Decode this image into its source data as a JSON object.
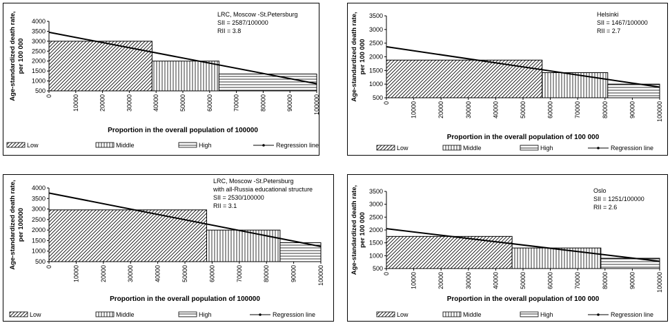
{
  "legend_items": [
    "Low",
    "Middle",
    "High",
    "Regression line"
  ],
  "chart_data": [
    {
      "type": "bar",
      "annotation": [
        "LRC, Moscow -St.Petersburg",
        "SII = 2587/100000",
        "RII = 3.8"
      ],
      "ylabel": [
        "Age-standardized death rate,",
        "per 100 000"
      ],
      "xlabel": "Proportion in the overall population of 100000",
      "ylim": [
        500,
        4000
      ],
      "yticks": [
        500,
        1000,
        1500,
        2000,
        2500,
        3000,
        3500,
        4000
      ],
      "xlim": [
        0,
        100000
      ],
      "xticks": [
        0,
        10000,
        20000,
        30000,
        40000,
        50000,
        60000,
        70000,
        80000,
        90000,
        100000
      ],
      "bars": [
        {
          "name": "Low",
          "x_start": 0,
          "x_end": 38500,
          "value": 3000
        },
        {
          "name": "Middle",
          "x_start": 38500,
          "x_end": 63500,
          "value": 2000
        },
        {
          "name": "High",
          "x_start": 63500,
          "x_end": 100000,
          "value": 1350
        }
      ],
      "regression": {
        "x": [
          0,
          100000
        ],
        "y": [
          3450,
          860
        ]
      },
      "legend": [
        "Low",
        "Middle",
        "High",
        "Regression line"
      ]
    },
    {
      "type": "bar",
      "annotation": [
        "Helsinki",
        "SII = 1467/100000",
        "RII = 2.7"
      ],
      "ylabel": [
        "Age-standardized death rate,",
        "per 100 000"
      ],
      "xlabel": "Proportion in the overall population of 100 000",
      "ylim": [
        500,
        3500
      ],
      "yticks": [
        500,
        1000,
        1500,
        2000,
        2500,
        3000,
        3500
      ],
      "xlim": [
        0,
        100000
      ],
      "xticks": [
        0,
        10000,
        20000,
        30000,
        40000,
        50000,
        60000,
        70000,
        80000,
        90000,
        100000
      ],
      "bars": [
        {
          "name": "Low",
          "x_start": 0,
          "x_end": 57000,
          "value": 1880
        },
        {
          "name": "Middle",
          "x_start": 57000,
          "x_end": 81000,
          "value": 1420
        },
        {
          "name": "High",
          "x_start": 81000,
          "x_end": 100000,
          "value": 1000
        }
      ],
      "regression": {
        "x": [
          0,
          100000
        ],
        "y": [
          2370,
          890
        ]
      },
      "legend": [
        "Low",
        "Middle",
        "High",
        "Regression line"
      ]
    },
    {
      "type": "bar",
      "annotation": [
        "LRC, Moscow -St.Petersburg",
        "with all-Russia educational structure",
        "SII = 2530/100000",
        "RII = 3.1"
      ],
      "ylabel": [
        "Age-standardized death rate,",
        "per 100000"
      ],
      "xlabel": "Proportion in the overall population of 100000",
      "ylim": [
        500,
        4000
      ],
      "yticks": [
        500,
        1000,
        1500,
        2000,
        2500,
        3000,
        3500,
        4000
      ],
      "xlim": [
        0,
        100000
      ],
      "xticks": [
        0,
        10000,
        20000,
        30000,
        40000,
        50000,
        60000,
        70000,
        80000,
        90000,
        100000
      ],
      "bars": [
        {
          "name": "Low",
          "x_start": 0,
          "x_end": 58000,
          "value": 2960
        },
        {
          "name": "Middle",
          "x_start": 58000,
          "x_end": 85000,
          "value": 2000
        },
        {
          "name": "High",
          "x_start": 85000,
          "x_end": 100000,
          "value": 1400
        }
      ],
      "regression": {
        "x": [
          0,
          100000
        ],
        "y": [
          3760,
          1220
        ]
      },
      "legend": [
        "Low",
        "Middle",
        "High",
        "Regression line"
      ]
    },
    {
      "type": "bar",
      "annotation": [
        "Oslo",
        "SII = 1251/100000",
        "RII = 2.6"
      ],
      "ylabel": [
        "Age-standardized death rate,",
        "per 100 000"
      ],
      "xlabel": "Proportion in the overall population of 100 000",
      "ylim": [
        500,
        3500
      ],
      "yticks": [
        500,
        1000,
        1500,
        2000,
        2500,
        3000,
        3500
      ],
      "xlim": [
        0,
        100000
      ],
      "xticks": [
        0,
        10000,
        20000,
        30000,
        40000,
        50000,
        60000,
        70000,
        80000,
        90000,
        100000
      ],
      "bars": [
        {
          "name": "Low",
          "x_start": 0,
          "x_end": 46000,
          "value": 1750
        },
        {
          "name": "Middle",
          "x_start": 46000,
          "x_end": 78500,
          "value": 1300
        },
        {
          "name": "High",
          "x_start": 78500,
          "x_end": 100000,
          "value": 900
        }
      ],
      "regression": {
        "x": [
          0,
          100000
        ],
        "y": [
          2050,
          780
        ]
      },
      "legend": [
        "Low",
        "Middle",
        "High",
        "Regression line"
      ]
    }
  ]
}
